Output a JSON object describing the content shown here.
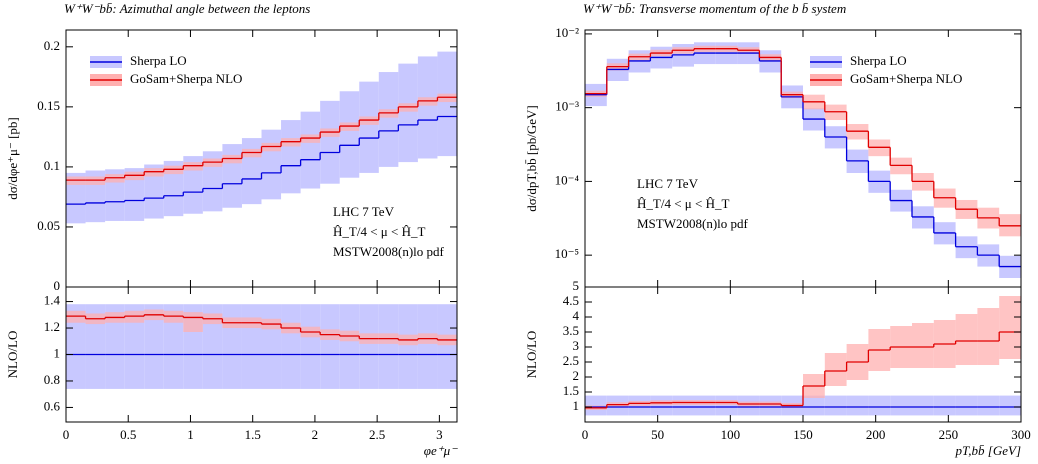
{
  "chart_data": [
    {
      "type": "histogram",
      "title": "W⁺W⁻bb̄: Azimuthal angle between the leptons",
      "ylabel": "dσ/dφe⁺μ⁻ [pb]",
      "bins": [
        0,
        0.1571,
        0.3142,
        0.4712,
        0.6283,
        0.7854,
        0.9425,
        1.0996,
        1.2566,
        1.4137,
        1.5708,
        1.7279,
        1.885,
        2.042,
        2.1991,
        2.3562,
        2.5133,
        2.6704,
        2.8274,
        2.9845,
        3.1416
      ],
      "xlim": [
        0,
        3.1416
      ],
      "ylim": [
        0,
        0.214
      ],
      "yticks": [
        0,
        0.05,
        0.1,
        0.15,
        0.2
      ],
      "log": false,
      "annotations": [
        "LHC 7 TeV",
        "Ĥ_T/4 < μ < Ĥ_T",
        "MSTW2008(n)lo pdf"
      ],
      "series": [
        {
          "name": "Sherpa LO",
          "color": "#0000dd",
          "band_color": "#c8c8ff",
          "values": [
            0.069,
            0.07,
            0.071,
            0.072,
            0.074,
            0.076,
            0.079,
            0.082,
            0.086,
            0.09,
            0.095,
            0.101,
            0.106,
            0.112,
            0.118,
            0.124,
            0.13,
            0.135,
            0.139,
            0.142
          ],
          "band_low": [
            0.053,
            0.054,
            0.055,
            0.055,
            0.057,
            0.059,
            0.061,
            0.063,
            0.066,
            0.069,
            0.073,
            0.078,
            0.082,
            0.086,
            0.091,
            0.095,
            0.1,
            0.104,
            0.107,
            0.109
          ],
          "band_high": [
            0.095,
            0.097,
            0.098,
            0.099,
            0.102,
            0.105,
            0.109,
            0.113,
            0.119,
            0.124,
            0.131,
            0.139,
            0.146,
            0.155,
            0.163,
            0.171,
            0.179,
            0.186,
            0.192,
            0.196
          ]
        },
        {
          "name": "GoSam+Sherpa NLO",
          "color": "#e00000",
          "band_color": "#ffb0b0",
          "values": [
            0.089,
            0.089,
            0.091,
            0.093,
            0.096,
            0.098,
            0.101,
            0.104,
            0.107,
            0.112,
            0.117,
            0.121,
            0.124,
            0.129,
            0.134,
            0.139,
            0.145,
            0.15,
            0.155,
            0.158
          ],
          "band_low": [
            0.085,
            0.085,
            0.087,
            0.089,
            0.092,
            0.094,
            0.097,
            0.1,
            0.103,
            0.108,
            0.113,
            0.117,
            0.12,
            0.125,
            0.13,
            0.135,
            0.141,
            0.146,
            0.151,
            0.154
          ],
          "band_high": [
            0.092,
            0.092,
            0.094,
            0.096,
            0.099,
            0.101,
            0.104,
            0.107,
            0.11,
            0.115,
            0.12,
            0.124,
            0.127,
            0.132,
            0.137,
            0.142,
            0.148,
            0.153,
            0.158,
            0.161
          ]
        }
      ]
    },
    {
      "type": "histogram",
      "ylabel": "NLO/LO",
      "xlabel": "φe⁺μ⁻",
      "bins": [
        0,
        0.1571,
        0.3142,
        0.4712,
        0.6283,
        0.7854,
        0.9425,
        1.0996,
        1.2566,
        1.4137,
        1.5708,
        1.7279,
        1.885,
        2.042,
        2.1991,
        2.3562,
        2.5133,
        2.6704,
        2.8274,
        2.9845,
        3.1416
      ],
      "xlim": [
        0,
        3.1416
      ],
      "xticks": [
        0,
        0.5,
        1,
        1.5,
        2,
        2.5,
        3
      ],
      "ylim": [
        0.49,
        1.51
      ],
      "yticks": [
        0.6,
        0.8,
        1,
        1.2,
        1.4
      ],
      "log": false,
      "series": [
        {
          "color": "#0000dd",
          "band_color": "#c8c8ff",
          "values": [
            1,
            1,
            1,
            1,
            1,
            1,
            1,
            1,
            1,
            1,
            1,
            1,
            1,
            1,
            1,
            1,
            1,
            1,
            1,
            1
          ],
          "band_low": [
            0.74,
            0.74,
            0.74,
            0.74,
            0.74,
            0.74,
            0.74,
            0.74,
            0.74,
            0.74,
            0.74,
            0.74,
            0.74,
            0.74,
            0.74,
            0.74,
            0.74,
            0.74,
            0.74,
            0.74
          ],
          "band_high": [
            1.38,
            1.38,
            1.38,
            1.38,
            1.38,
            1.38,
            1.38,
            1.38,
            1.38,
            1.38,
            1.38,
            1.38,
            1.38,
            1.38,
            1.38,
            1.38,
            1.38,
            1.38,
            1.38,
            1.38
          ]
        },
        {
          "color": "#e00000",
          "band_color": "#ffb0b0",
          "values": [
            1.29,
            1.27,
            1.28,
            1.29,
            1.3,
            1.29,
            1.28,
            1.27,
            1.24,
            1.24,
            1.23,
            1.2,
            1.17,
            1.15,
            1.14,
            1.12,
            1.12,
            1.11,
            1.12,
            1.11
          ],
          "band_low": [
            1.24,
            1.23,
            1.24,
            1.24,
            1.26,
            1.24,
            1.17,
            1.23,
            1.2,
            1.2,
            1.19,
            1.16,
            1.13,
            1.11,
            1.1,
            1.08,
            1.08,
            1.07,
            1.08,
            1.07
          ],
          "band_high": [
            1.33,
            1.31,
            1.32,
            1.33,
            1.34,
            1.33,
            1.32,
            1.31,
            1.28,
            1.28,
            1.27,
            1.24,
            1.21,
            1.19,
            1.18,
            1.16,
            1.16,
            1.15,
            1.16,
            1.15
          ]
        }
      ]
    },
    {
      "type": "histogram",
      "title": "W⁺W⁻bb̄: Transverse momentum of the b b̄ system",
      "ylabel": "dσ/dpT,bb̄ [pb/GeV]",
      "bins": [
        0,
        15,
        30,
        45,
        60,
        75,
        90,
        105,
        120,
        135,
        150,
        165,
        180,
        195,
        210,
        225,
        240,
        255,
        270,
        285,
        300
      ],
      "xlim": [
        0,
        300
      ],
      "ylim": [
        3.7e-06,
        0.0113
      ],
      "log": true,
      "yticks": [
        {
          "value": 1e-05,
          "label": "10⁻⁵"
        },
        {
          "value": 0.0001,
          "label": "10⁻⁴"
        },
        {
          "value": 0.001,
          "label": "10⁻³"
        },
        {
          "value": 0.01,
          "label": "10⁻²"
        }
      ],
      "annotations": [
        "LHC 7 TeV",
        "Ĥ_T/4 < μ < Ĥ_T",
        "MSTW2008(n)lo pdf"
      ],
      "series": [
        {
          "name": "Sherpa LO",
          "color": "#0000dd",
          "band_color": "#c8c8ff",
          "values": [
            0.0015,
            0.0033,
            0.0043,
            0.0048,
            0.0052,
            0.0055,
            0.0055,
            0.0055,
            0.0043,
            0.0014,
            0.0007,
            0.0004,
            0.00019,
            0.0001,
            5.5e-05,
            3.3e-05,
            2e-05,
            1.3e-05,
            1e-05,
            7e-06
          ],
          "band_low": [
            0.00105,
            0.0023,
            0.003,
            0.0034,
            0.0036,
            0.0039,
            0.0039,
            0.0039,
            0.003,
            0.00098,
            0.00049,
            0.00028,
            0.00013,
            7e-05,
            3.9e-05,
            2.3e-05,
            1.4e-05,
            9.1e-06,
            7e-06,
            4.9e-06
          ],
          "band_high": [
            0.0021,
            0.0046,
            0.006,
            0.0067,
            0.0073,
            0.0077,
            0.0077,
            0.0077,
            0.006,
            0.002,
            0.00098,
            0.00056,
            0.00027,
            0.00014,
            7.7e-05,
            4.6e-05,
            2.8e-05,
            1.8e-05,
            1.4e-05,
            9.8e-06
          ]
        },
        {
          "name": "GoSam+Sherpa NLO",
          "color": "#e00000",
          "band_color": "#ffb0b0",
          "values": [
            0.00155,
            0.0036,
            0.0049,
            0.0055,
            0.006,
            0.0063,
            0.0063,
            0.006,
            0.0048,
            0.0015,
            0.0012,
            0.00088,
            0.00048,
            0.00029,
            0.000165,
            0.0001,
            6e-05,
            4.2e-05,
            3.2e-05,
            2.5e-05
          ],
          "band_low": [
            0.0014,
            0.0032,
            0.0044,
            0.005,
            0.0054,
            0.0057,
            0.0057,
            0.0054,
            0.0043,
            0.00135,
            0.00095,
            0.00068,
            0.00037,
            0.00022,
            0.000125,
            7.5e-05,
            4.4e-05,
            3.1e-05,
            2.3e-05,
            1.8e-05
          ],
          "band_high": [
            0.0017,
            0.004,
            0.0054,
            0.0061,
            0.0066,
            0.0069,
            0.0069,
            0.0066,
            0.0053,
            0.00165,
            0.0015,
            0.0011,
            0.0006,
            0.00037,
            0.00021,
            0.00013,
            8e-05,
            5.6e-05,
            4.4e-05,
            3.6e-05
          ]
        }
      ]
    },
    {
      "type": "histogram",
      "ylabel": "NLO/LO",
      "xlabel": "pT,bb̄ [GeV]",
      "bins": [
        0,
        15,
        30,
        45,
        60,
        75,
        90,
        105,
        120,
        135,
        150,
        165,
        180,
        195,
        210,
        225,
        240,
        255,
        270,
        285,
        300
      ],
      "xlim": [
        0,
        300
      ],
      "xticks": [
        0,
        50,
        100,
        150,
        200,
        250,
        300
      ],
      "ylim": [
        0.5,
        5
      ],
      "yticks": [
        1,
        1.5,
        2,
        2.5,
        3,
        3.5,
        4,
        4.5,
        5
      ],
      "log": false,
      "series": [
        {
          "color": "#0000dd",
          "band_color": "#c8c8ff",
          "values": [
            1,
            1,
            1,
            1,
            1,
            1,
            1,
            1,
            1,
            1,
            1,
            1,
            1,
            1,
            1,
            1,
            1,
            1,
            1,
            1
          ],
          "band_low": [
            0.72,
            0.72,
            0.72,
            0.72,
            0.72,
            0.72,
            0.72,
            0.72,
            0.72,
            0.72,
            0.72,
            0.72,
            0.72,
            0.72,
            0.72,
            0.72,
            0.72,
            0.72,
            0.72,
            0.72
          ],
          "band_high": [
            1.38,
            1.38,
            1.38,
            1.38,
            1.38,
            1.38,
            1.38,
            1.38,
            1.38,
            1.38,
            1.38,
            1.38,
            1.38,
            1.38,
            1.38,
            1.38,
            1.38,
            1.38,
            1.38,
            1.38
          ]
        },
        {
          "color": "#e00000",
          "band_color": "#ffb0b0",
          "values": [
            0.97,
            1.08,
            1.12,
            1.14,
            1.15,
            1.15,
            1.15,
            1.1,
            1.1,
            1.05,
            1.7,
            2.2,
            2.5,
            2.9,
            3.0,
            3.0,
            3.1,
            3.2,
            3.2,
            3.5
          ],
          "band_low": [
            0.9,
            1.0,
            1.04,
            1.06,
            1.07,
            1.07,
            1.07,
            1.02,
            1.02,
            0.97,
            1.3,
            1.7,
            1.9,
            2.2,
            2.3,
            2.3,
            2.3,
            2.4,
            2.4,
            2.6
          ],
          "band_high": [
            1.05,
            1.16,
            1.2,
            1.22,
            1.23,
            1.23,
            1.23,
            1.18,
            1.18,
            1.13,
            2.1,
            2.8,
            3.1,
            3.6,
            3.7,
            3.8,
            3.9,
            4.1,
            4.3,
            4.7
          ]
        }
      ]
    }
  ]
}
